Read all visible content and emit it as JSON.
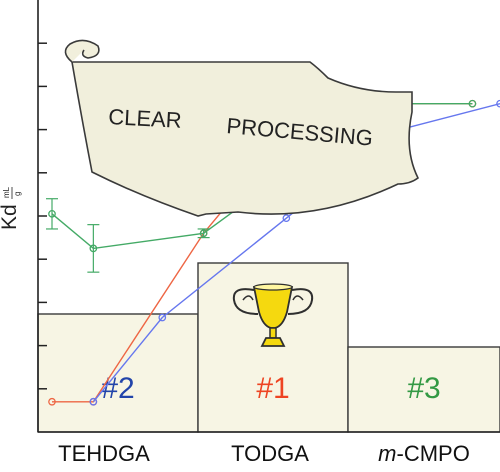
{
  "chart_data": {
    "type": "line",
    "title": "",
    "ylabel": "Kd",
    "ylabel_units_num": "mL",
    "ylabel_units_den": "g",
    "xlabel": "",
    "categories": [
      "TEHDGA",
      "TODGA",
      "m-CMPO"
    ],
    "category_labels": [
      {
        "prefix": "",
        "italic": "",
        "rest": "TEHDGA"
      },
      {
        "prefix": "",
        "italic": "",
        "rest": "TODGA"
      },
      {
        "prefix": "",
        "italic": "m",
        "rest": "-CMPO"
      }
    ],
    "ylim": [
      0,
      10
    ],
    "yticks": [
      1,
      2,
      3,
      4,
      5,
      6,
      7,
      8,
      9
    ],
    "x_range": [
      0,
      6.5
    ],
    "series": [
      {
        "color": "#ee6644",
        "points": [
          [
            0.0,
            0.7
          ],
          [
            0.6,
            0.7
          ],
          [
            2.2,
            4.6
          ],
          [
            3.4,
            6.9
          ],
          [
            5.0,
            7.6
          ],
          [
            6.1,
            7.6
          ]
        ],
        "error_bars": [
          [
            3.4,
            0.1
          ]
        ]
      },
      {
        "color": "#44aa66",
        "points": [
          [
            0.0,
            5.05
          ],
          [
            0.6,
            4.25
          ],
          [
            2.2,
            4.6
          ],
          [
            3.4,
            6.0
          ],
          [
            5.0,
            7.6
          ],
          [
            6.1,
            7.6
          ]
        ],
        "error_bars": [
          [
            0.0,
            0.35
          ],
          [
            0.6,
            0.55
          ],
          [
            2.2,
            0.1
          ],
          [
            3.4,
            0.1
          ]
        ]
      },
      {
        "color": "#6677ee",
        "points": [
          [
            0.6,
            0.7
          ],
          [
            1.6,
            2.65
          ],
          [
            3.4,
            4.95
          ],
          [
            5.0,
            6.98
          ],
          [
            6.5,
            7.6
          ]
        ],
        "error_bars": []
      }
    ],
    "podium": [
      {
        "rank": "#2",
        "color": "#2244aa",
        "position": "left"
      },
      {
        "rank": "#1",
        "color": "#ee4422",
        "position": "center"
      },
      {
        "rank": "#3",
        "color": "#339944",
        "position": "right"
      }
    ],
    "banner_text": [
      "CLEAR",
      "PROCESSING"
    ]
  }
}
